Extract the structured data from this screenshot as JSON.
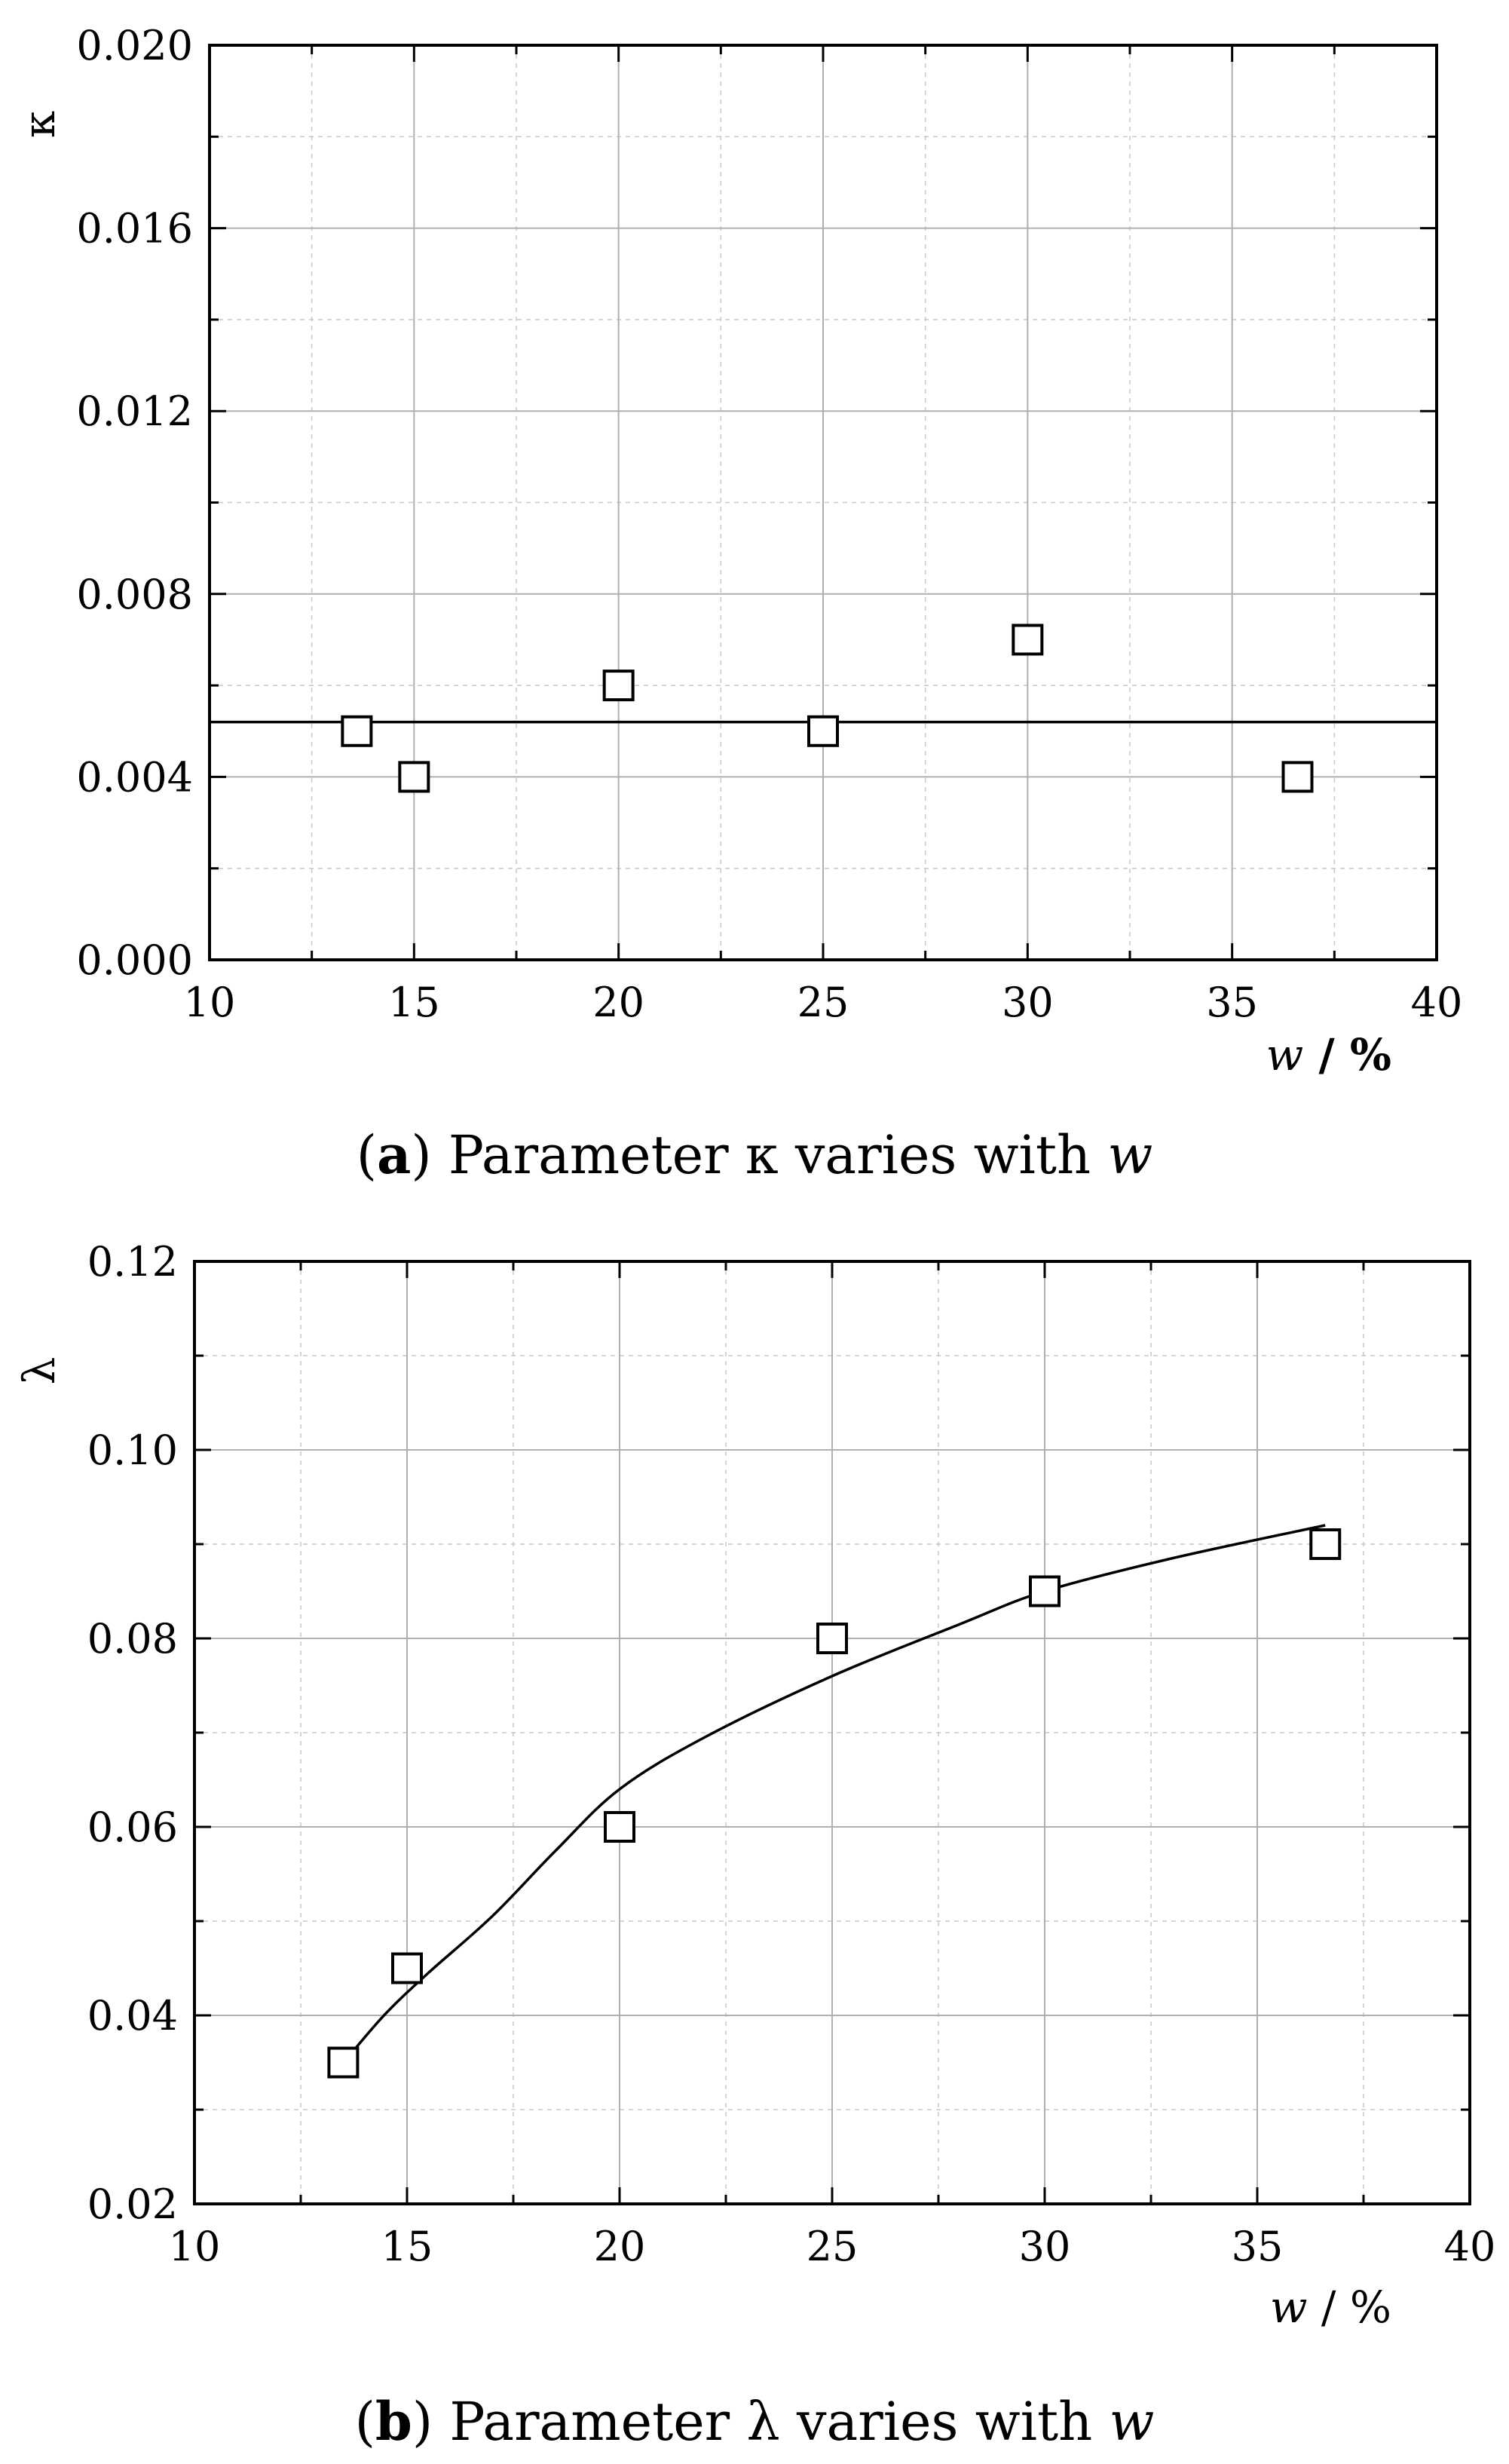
{
  "chart_data": [
    {
      "type": "scatter",
      "panel": "a",
      "caption_letter": "a",
      "caption_text": " Parameter κ varies with ",
      "caption_var": "w",
      "xlabel_var": "w",
      "xlabel_unit": " / %",
      "ylabel": "κ",
      "xlim": [
        10,
        40
      ],
      "ylim": [
        0.0,
        0.02
      ],
      "x_ticks": [
        10,
        15,
        20,
        25,
        30,
        35,
        40
      ],
      "y_ticks": [
        "0.000",
        "0.004",
        "0.008",
        "0.012",
        "0.016",
        "0.020"
      ],
      "grid": true,
      "series": [
        {
          "marker": "open-square",
          "x": [
            13.6,
            15.0,
            20.0,
            25.0,
            30.0,
            36.6
          ],
          "y": [
            0.005,
            0.004,
            0.006,
            0.005,
            0.007,
            0.004
          ]
        }
      ],
      "fit_line": {
        "type": "horizontal",
        "y": 0.0052
      }
    },
    {
      "type": "scatter",
      "panel": "b",
      "caption_letter": "b",
      "caption_text": " Parameter λ varies with ",
      "caption_var": "w",
      "xlabel_var": "w",
      "xlabel_unit": "  /  %",
      "ylabel": "λ",
      "xlim": [
        10,
        40
      ],
      "ylim": [
        0.02,
        0.12
      ],
      "x_ticks": [
        10,
        15,
        20,
        25,
        30,
        35,
        40
      ],
      "y_ticks": [
        "0.02",
        "0.04",
        "0.06",
        "0.08",
        "0.10",
        "0.12"
      ],
      "grid": true,
      "series": [
        {
          "marker": "open-square",
          "x": [
            13.5,
            15.0,
            20.0,
            25.0,
            30.0,
            36.6
          ],
          "y": [
            0.035,
            0.045,
            0.06,
            0.08,
            0.085,
            0.09
          ]
        }
      ],
      "fit_line": {
        "type": "curve",
        "x": [
          13.6,
          14.5,
          15.5,
          17.0,
          18.5,
          20.0,
          22.0,
          25.0,
          28.0,
          30.0,
          33.0,
          36.6
        ],
        "y": [
          0.0355,
          0.0402,
          0.0445,
          0.0505,
          0.0575,
          0.064,
          0.0695,
          0.076,
          0.0815,
          0.085,
          0.0885,
          0.092
        ]
      }
    }
  ]
}
